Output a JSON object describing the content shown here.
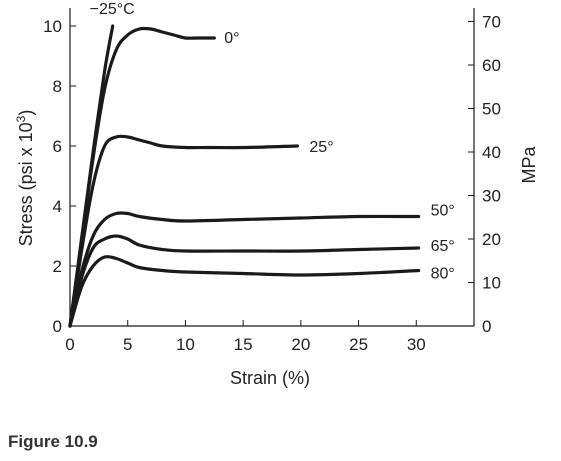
{
  "chart_data": {
    "type": "line",
    "xlabel": "Strain (%)",
    "ylabel": "Stress (psi x 10",
    "ylabel_sup": "3",
    "ylabel_close": ")",
    "y2label": "MPa",
    "xlim": [
      0,
      35
    ],
    "ylim": [
      0,
      10.6
    ],
    "y2lim": [
      0,
      73.1
    ],
    "x_ticks": [
      0,
      5,
      10,
      15,
      20,
      25,
      30
    ],
    "x_tick_labels": [
      "0",
      "5",
      "10",
      "15",
      "20",
      "25",
      "30"
    ],
    "y_ticks": [
      0,
      2,
      4,
      6,
      8,
      10
    ],
    "y_tick_labels": [
      "0",
      "2",
      "4",
      "6",
      "8",
      "10"
    ],
    "y2_ticks": [
      0,
      10,
      20,
      30,
      40,
      50,
      60,
      70
    ],
    "y2_tick_labels": [
      "0",
      "10",
      "20",
      "30",
      "40",
      "50",
      "60",
      "70"
    ],
    "grid": false,
    "legend": "none",
    "line_color": "#1a1a1a",
    "series": [
      {
        "name": "−25°C",
        "x": [
          0,
          1,
          2,
          3,
          3.7
        ],
        "y": [
          0,
          2.9,
          5.8,
          8.5,
          10.0
        ]
      },
      {
        "name": "0°",
        "x": [
          0,
          1,
          2,
          3,
          4,
          5,
          6,
          7,
          8,
          9,
          10,
          11,
          12.5
        ],
        "y": [
          0,
          2.8,
          5.6,
          7.9,
          9.2,
          9.7,
          9.9,
          9.9,
          9.8,
          9.7,
          9.6,
          9.6,
          9.6
        ]
      },
      {
        "name": "25°",
        "x": [
          0,
          1,
          2,
          3,
          4,
          5,
          6,
          7,
          8,
          10,
          12,
          15,
          19.7
        ],
        "y": [
          0,
          2.5,
          4.7,
          6.0,
          6.3,
          6.3,
          6.2,
          6.1,
          6.0,
          5.95,
          5.95,
          5.95,
          6.0
        ]
      },
      {
        "name": "50°",
        "x": [
          0,
          1,
          2,
          3,
          4,
          5,
          6,
          8,
          10,
          15,
          20,
          25,
          30.2
        ],
        "y": [
          0,
          1.8,
          3.0,
          3.55,
          3.75,
          3.75,
          3.65,
          3.55,
          3.5,
          3.55,
          3.6,
          3.65,
          3.65
        ]
      },
      {
        "name": "65°",
        "x": [
          0,
          1,
          2,
          3,
          4,
          5,
          6,
          8,
          10,
          15,
          20,
          25,
          30.2
        ],
        "y": [
          0,
          1.6,
          2.6,
          2.9,
          3.0,
          2.9,
          2.7,
          2.55,
          2.5,
          2.5,
          2.5,
          2.55,
          2.6
        ]
      },
      {
        "name": "80°",
        "x": [
          0,
          1,
          2,
          3,
          4,
          5,
          6,
          8,
          10,
          15,
          20,
          25,
          30.2
        ],
        "y": [
          0,
          1.3,
          2.0,
          2.3,
          2.25,
          2.1,
          1.95,
          1.85,
          1.8,
          1.75,
          1.7,
          1.75,
          1.85
        ]
      }
    ]
  },
  "caption": "Figure 10.9"
}
